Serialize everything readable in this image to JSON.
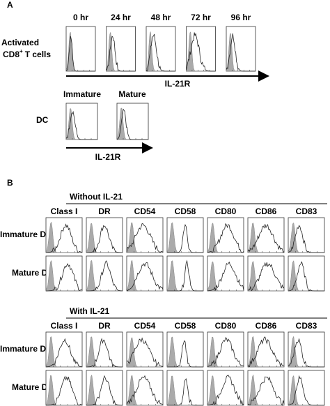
{
  "panel_a": {
    "label": "A",
    "timepoints": [
      "0 hr",
      "24 hr",
      "48 hr",
      "72 hr",
      "96 hr"
    ],
    "row_label": {
      "line1": "Activated",
      "line2_main": "CD8",
      "line2_sup": "+",
      "line2_rest": "T cells"
    },
    "axis_label": "IL-21R",
    "dc": {
      "columns": [
        "Immature",
        "Mature"
      ],
      "row_label": "DC",
      "axis_label": "IL-21R"
    }
  },
  "panel_b": {
    "label": "B",
    "markers": [
      "Class I",
      "DR",
      "CD54",
      "CD58",
      "CD80",
      "CD86",
      "CD83"
    ],
    "groups": [
      {
        "title": "Without IL-21",
        "rows": [
          "Immature DC",
          "Mature DC"
        ]
      },
      {
        "title": "With IL-21",
        "rows": [
          "Immature DC",
          "Mature DC"
        ]
      }
    ]
  }
}
